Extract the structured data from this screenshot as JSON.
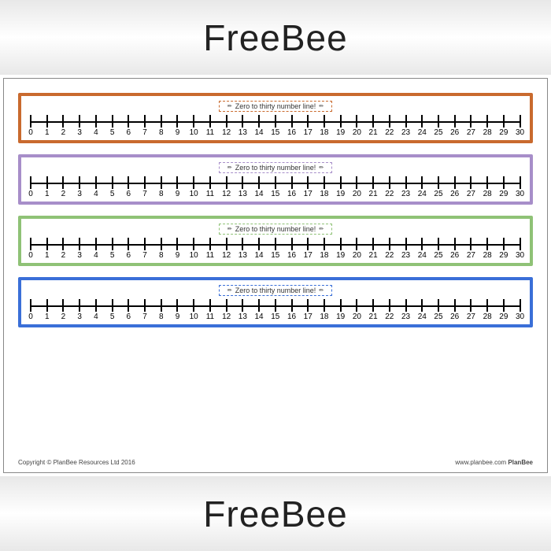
{
  "banner_text": "FreeBee",
  "strip_label": "Zero to thirty number line!",
  "strips": [
    {
      "border_color": "#c96a2e",
      "label_border": "#c96a2e"
    },
    {
      "border_color": "#a78ec9",
      "label_border": "#a78ec9"
    },
    {
      "border_color": "#8fc276",
      "label_border": "#8fc276"
    },
    {
      "border_color": "#3a6fd8",
      "label_border": "#3a6fd8"
    }
  ],
  "numberline": {
    "min": 0,
    "max": 30,
    "step": 1
  },
  "footer_left": "Copyright © PlanBee Resources Ltd 2016",
  "footer_right_url": "www.planbee.com",
  "footer_right_brand": "PlanBee"
}
